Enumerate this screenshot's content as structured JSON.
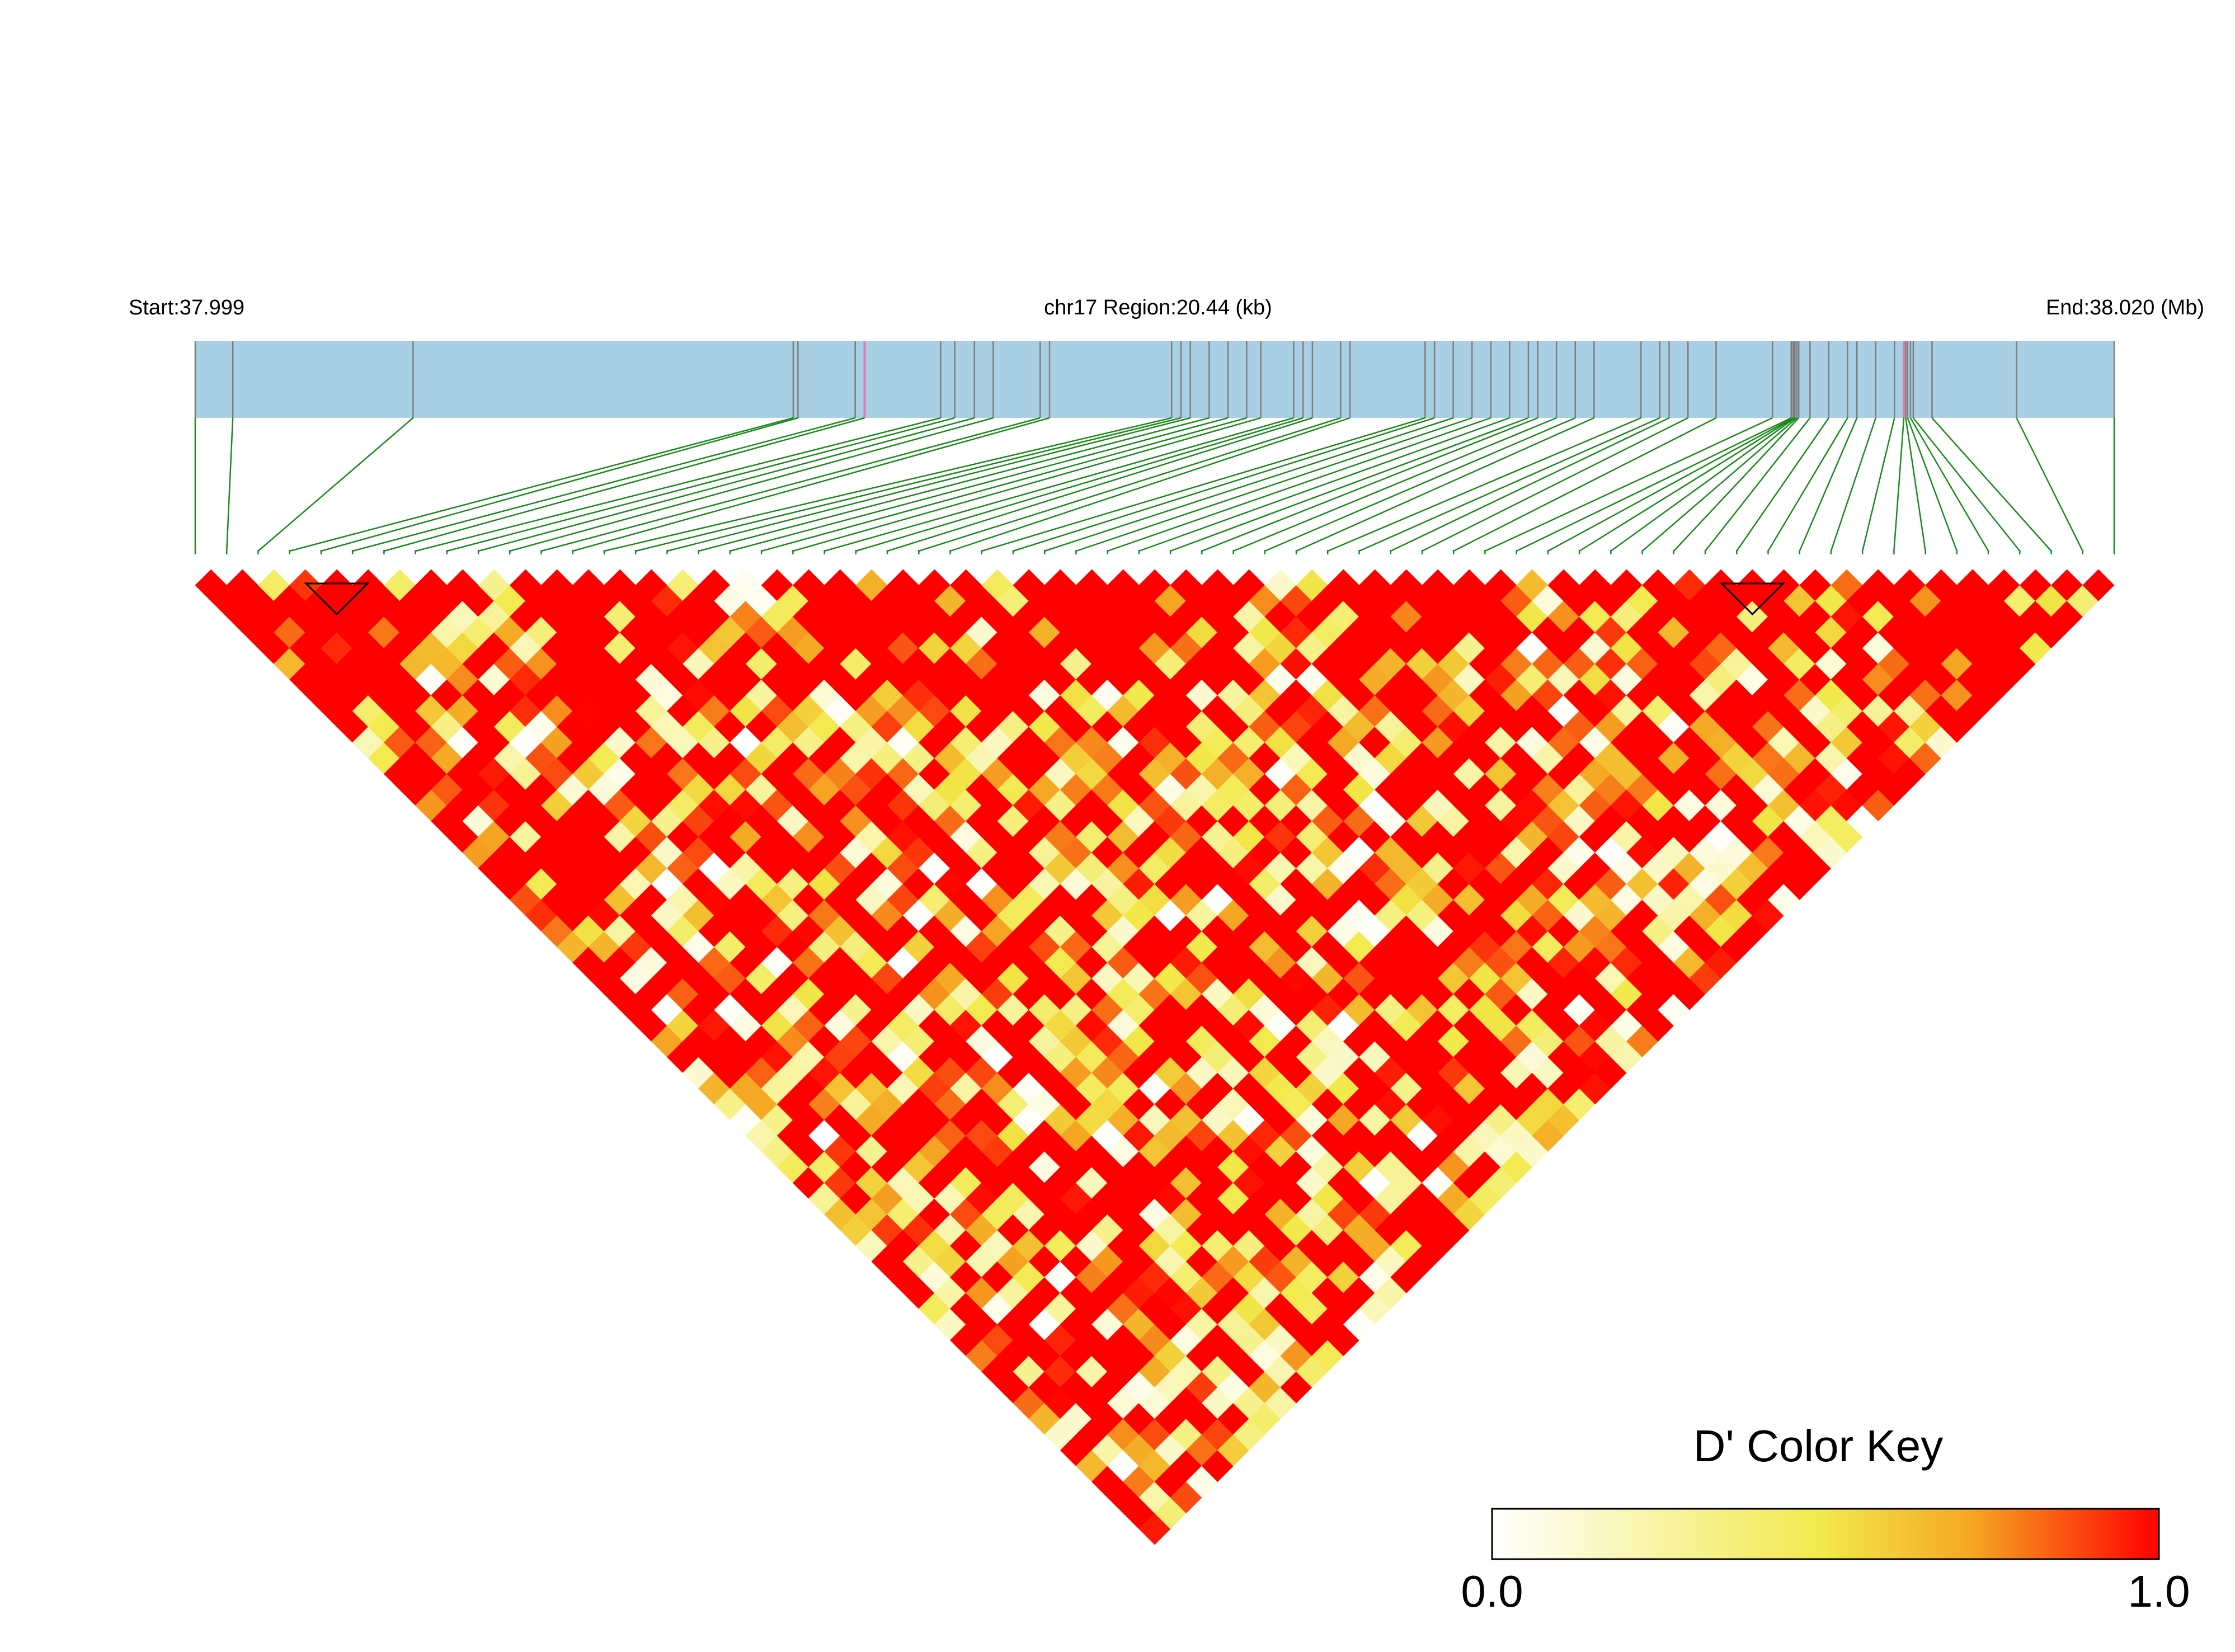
{
  "chart_data": {
    "type": "heatmap",
    "subtype": "LD triangle heatmap",
    "header": {
      "start_label": "Start:37.999",
      "region_label": "chr17 Region:20.44 (kb)",
      "end_label": "End:38.020 (Mb)"
    },
    "region_start_mb": 37.999,
    "region_end_mb": 38.02,
    "snp_count": 62,
    "snp_positions_kb": [
      0.0,
      0.4,
      2.32,
      6.37,
      6.42,
      7.03,
      7.13,
      7.94,
      8.09,
      8.3,
      8.5,
      9.0,
      9.1,
      10.4,
      10.5,
      10.6,
      10.8,
      11.0,
      11.2,
      11.35,
      11.7,
      11.8,
      11.9,
      12.2,
      12.3,
      13.1,
      13.2,
      13.4,
      13.6,
      13.8,
      14.0,
      14.2,
      14.3,
      14.5,
      14.7,
      14.9,
      15.4,
      15.6,
      15.7,
      15.9,
      16.2,
      16.8,
      17.0,
      17.02,
      17.03,
      17.04,
      17.06,
      17.08,
      17.2,
      17.4,
      17.6,
      17.7,
      17.9,
      18.1,
      18.2,
      18.22,
      18.24,
      18.27,
      18.3,
      18.5,
      19.4,
      20.44
    ],
    "highlighted_snps": [
      6,
      54
    ],
    "marker_triangles": [
      3,
      48
    ],
    "color_key": {
      "title": "D' Color Key",
      "min_label": "0.0",
      "max_label": "1.0",
      "colors": [
        "#ffffff",
        "#f2e94a",
        "#f5a623",
        "#ff0000"
      ]
    },
    "dprime_matrix_note": "Pairwise D' values are rendered as diamonds; row/col indices correspond to snp_positions_kb."
  }
}
